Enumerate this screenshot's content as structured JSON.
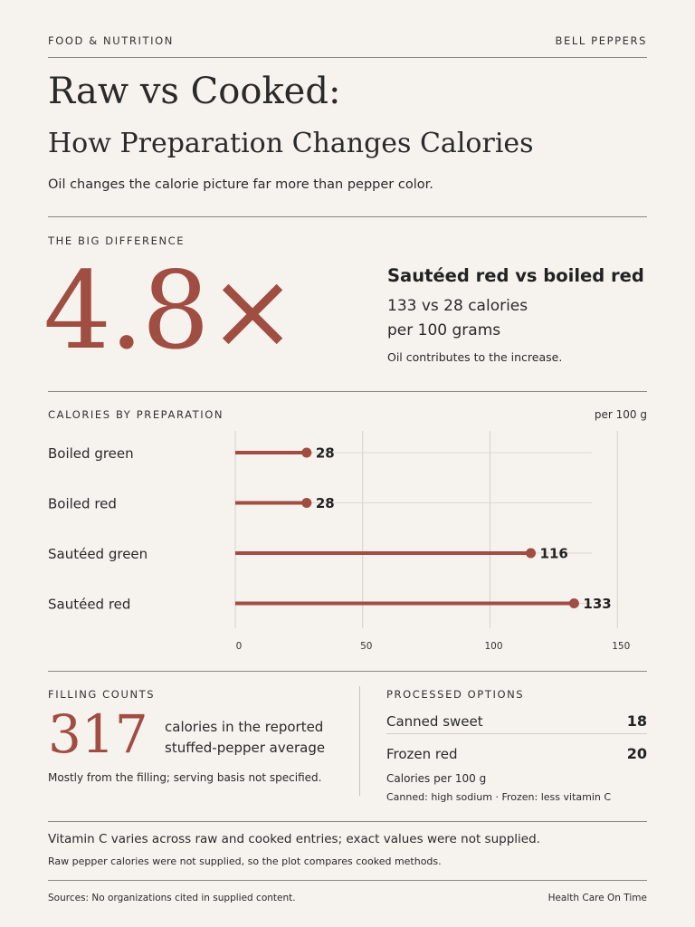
{
  "header": {
    "section": "FOOD & NUTRITION",
    "topic": "BELL PEPPERS"
  },
  "title": {
    "line1": "Raw vs Cooked:",
    "line2": "How Preparation Changes Calories",
    "subtitle": "Oil changes the calorie picture far more than pepper color."
  },
  "big_difference": {
    "kicker": "THE BIG DIFFERENCE",
    "value": "4.8×",
    "headline": "Sautéed red vs boiled red",
    "line1": "133 vs 28 calories",
    "line2": "per 100 grams",
    "note": "Oil contributes to the increase."
  },
  "chart_section": {
    "kicker": "CALORIES BY PREPARATION",
    "unit": "per 100 g"
  },
  "chart_data": {
    "type": "bar",
    "title": "CALORIES BY PREPARATION",
    "ylabel": "",
    "xlabel": "",
    "unit": "per 100 g",
    "orientation": "horizontal",
    "style": "lollipop",
    "categories": [
      "Boiled green",
      "Boiled red",
      "Sautéed green",
      "Sautéed red"
    ],
    "values": [
      28,
      28,
      116,
      133
    ],
    "xlim": [
      0,
      150
    ],
    "xticks": [
      0,
      50,
      100,
      150
    ],
    "grid": true,
    "color": "#a04d42"
  },
  "filling": {
    "kicker": "FILLING COUNTS",
    "value": "317",
    "line1": "calories in the reported",
    "line2": "stuffed-pepper average",
    "note": "Mostly from the filling; serving basis not specified."
  },
  "processed": {
    "kicker": "PROCESSED OPTIONS",
    "items": [
      {
        "label": "Canned sweet",
        "value": "18"
      },
      {
        "label": "Frozen red",
        "value": "20"
      }
    ],
    "note1": "Calories per 100 g",
    "note2": "Canned: high sodium · Frozen: less vitamin C"
  },
  "footnotes": {
    "line1": "Vitamin C varies across raw and cooked entries; exact values were not supplied.",
    "line2": "Raw pepper calories were not supplied, so the plot compares cooked methods."
  },
  "footer": {
    "sources": "Sources: No organizations cited in supplied content.",
    "brand": "Health Care On Time"
  },
  "colors": {
    "accent": "#a04d42",
    "background": "#f6f3ee",
    "text": "#222222"
  }
}
